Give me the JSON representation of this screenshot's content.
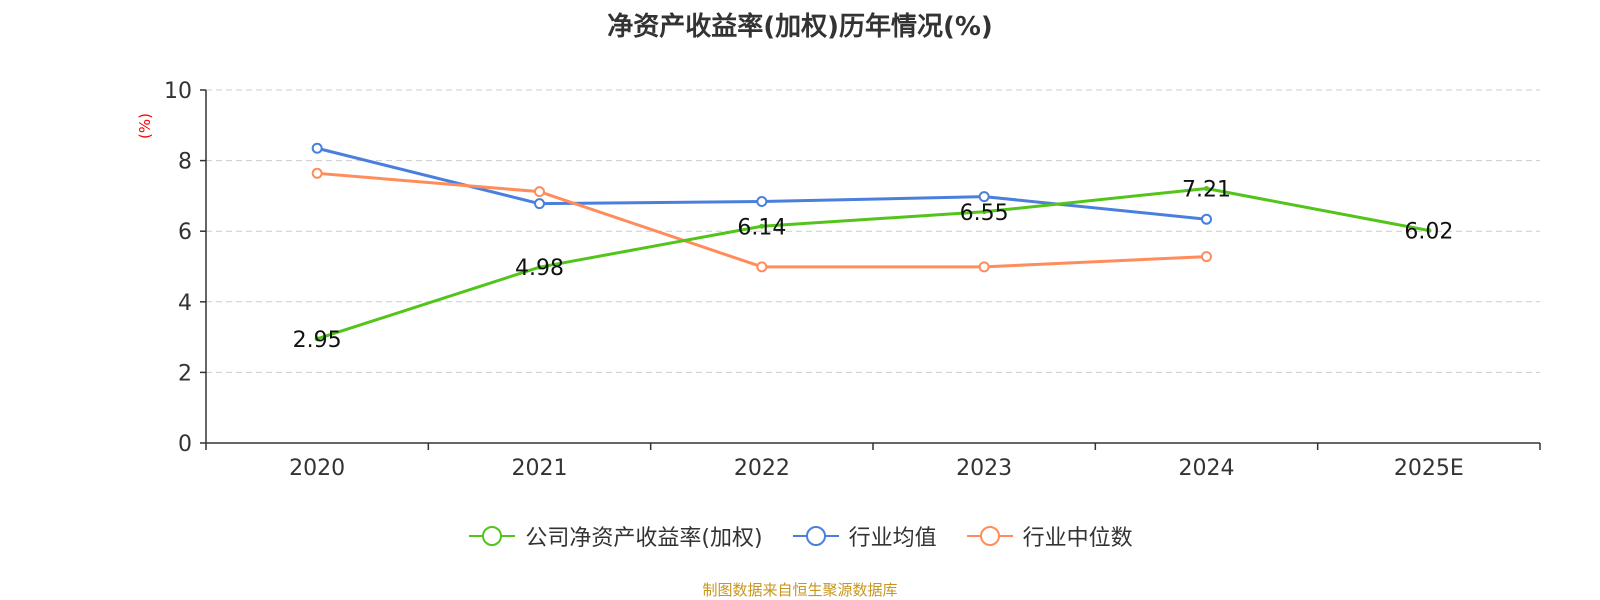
{
  "chart_data": {
    "type": "line",
    "title": "净资产收益率(加权)历年情况(%)",
    "ylabel": "(%)",
    "xlabel": "",
    "ylim": [
      0,
      10
    ],
    "yticks": [
      0,
      2,
      4,
      6,
      8,
      10
    ],
    "categories": [
      "2020",
      "2021",
      "2022",
      "2023",
      "2024",
      "2025E"
    ],
    "series": [
      {
        "name": "公司净资产收益率(加权)",
        "color": "#52c41a",
        "values": [
          2.95,
          4.98,
          6.14,
          6.55,
          7.21,
          6.02
        ],
        "labels": [
          "2.95",
          "4.98",
          "6.14",
          "6.55",
          "7.21",
          "6.02"
        ]
      },
      {
        "name": "行业均值",
        "color": "#4a7fdc",
        "values": [
          8.35,
          6.78,
          6.84,
          6.98,
          6.34,
          null
        ]
      },
      {
        "name": "行业中位数",
        "color": "#ff8c5a",
        "values": [
          7.64,
          7.12,
          4.99,
          4.99,
          5.28,
          null
        ]
      }
    ],
    "grid": true,
    "legend": "bottom-center"
  },
  "source": "制图数据来自恒生聚源数据库"
}
